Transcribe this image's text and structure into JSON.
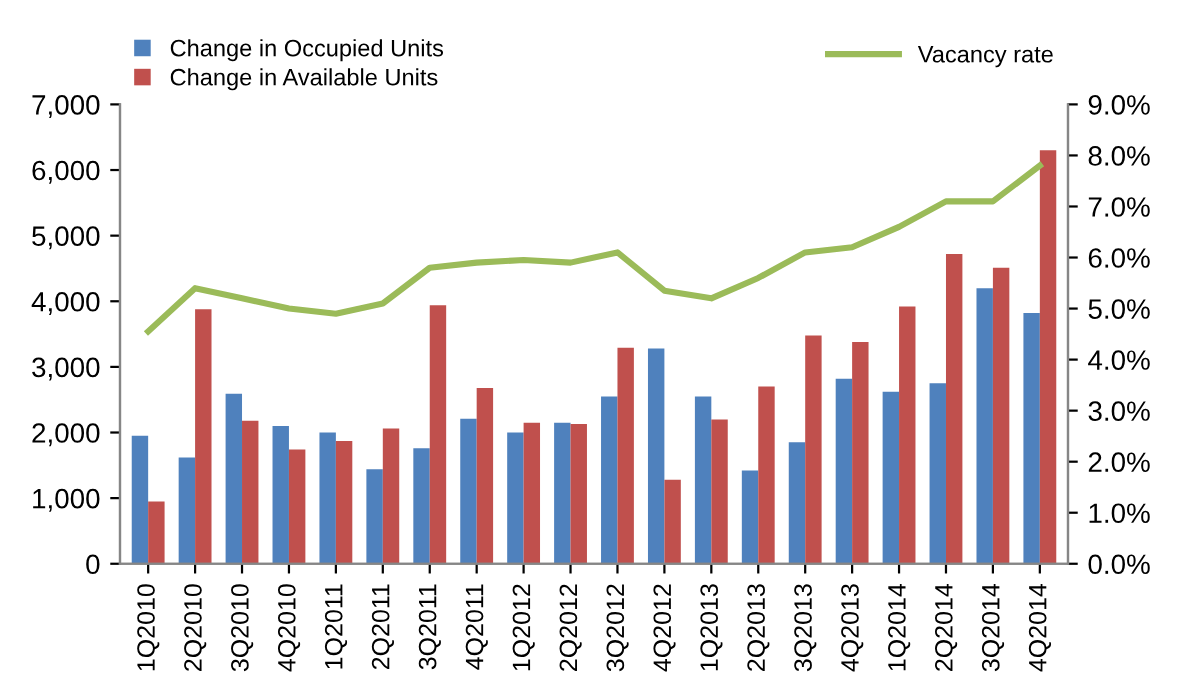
{
  "chart_data": {
    "type": "bar",
    "categories": [
      "1Q2010",
      "2Q2010",
      "3Q2010",
      "4Q2010",
      "1Q2011",
      "2Q2011",
      "3Q2011",
      "4Q2011",
      "1Q2012",
      "2Q2012",
      "3Q2012",
      "4Q2012",
      "1Q2013",
      "2Q2013",
      "3Q2013",
      "4Q2013",
      "1Q2014",
      "2Q2014",
      "3Q2014",
      "4Q2014"
    ],
    "series": [
      {
        "name": "Change in Occupied Units",
        "color": "#4f81bd",
        "values": [
          1950,
          1620,
          2590,
          2100,
          2000,
          1440,
          1760,
          2210,
          2000,
          2150,
          2550,
          3280,
          2550,
          1420,
          1850,
          2820,
          2620,
          2750,
          4200,
          3820
        ]
      },
      {
        "name": "Change in Available Units",
        "color": "#c0504d",
        "values": [
          950,
          3880,
          2180,
          1740,
          1870,
          2060,
          3940,
          2680,
          2150,
          2130,
          3290,
          1280,
          2200,
          2700,
          3480,
          3380,
          3920,
          4720,
          4510,
          6300
        ]
      },
      {
        "name": "Vacancy rate",
        "type": "line",
        "axis": "y2",
        "color": "#9bbb59",
        "values": [
          4.55,
          5.4,
          5.2,
          5.0,
          4.9,
          5.1,
          5.8,
          5.9,
          5.95,
          5.9,
          6.1,
          5.35,
          5.2,
          5.6,
          6.1,
          6.2,
          6.6,
          7.1,
          7.1,
          7.8
        ]
      }
    ],
    "ylim": [
      0,
      7000
    ],
    "yticks": [
      {
        "value": 0,
        "label": "0"
      },
      {
        "value": 1000,
        "label": "1,000"
      },
      {
        "value": 2000,
        "label": "2,000"
      },
      {
        "value": 3000,
        "label": "3,000"
      },
      {
        "value": 4000,
        "label": "4,000"
      },
      {
        "value": 5000,
        "label": "5,000"
      },
      {
        "value": 6000,
        "label": "6,000"
      },
      {
        "value": 7000,
        "label": "7,000"
      }
    ],
    "y2lim": [
      0,
      9
    ],
    "y2ticks": [
      {
        "value": 0,
        "label": "0.0%"
      },
      {
        "value": 1,
        "label": "1.0%"
      },
      {
        "value": 2,
        "label": "2.0%"
      },
      {
        "value": 3,
        "label": "3.0%"
      },
      {
        "value": 4,
        "label": "4.0%"
      },
      {
        "value": 5,
        "label": "5.0%"
      },
      {
        "value": 6,
        "label": "6.0%"
      },
      {
        "value": 7,
        "label": "7.0%"
      },
      {
        "value": 8,
        "label": "8.0%"
      },
      {
        "value": 9,
        "label": "9.0%"
      }
    ],
    "legend": "top",
    "grid": false,
    "marker": "none"
  }
}
